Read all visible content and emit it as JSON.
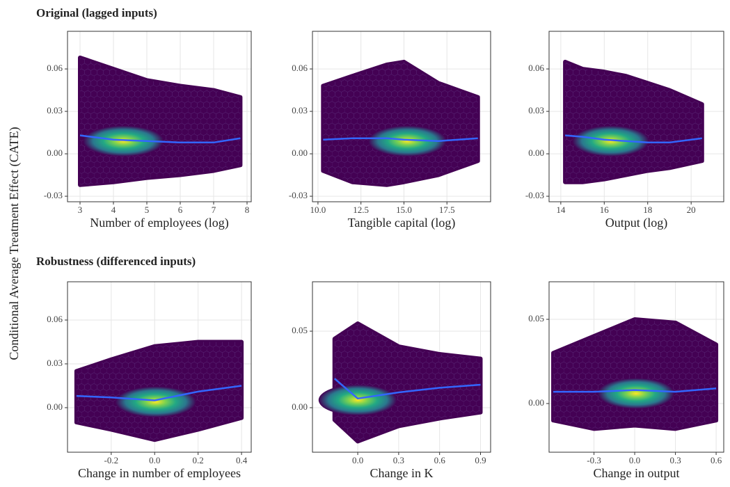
{
  "row_titles": [
    "Original (lagged inputs)",
    "Robustness (differenced inputs)"
  ],
  "y_label": "Conditional Average Treatment Effect (CATE)",
  "chart_data": [
    {
      "type": "hexbin",
      "x_label": "Number of employees (log)",
      "xlim": [
        2.625,
        8.125
      ],
      "ylim": [
        -0.0339,
        0.0866
      ],
      "xticks": [
        3,
        4,
        5,
        6,
        7,
        8
      ],
      "yticks": [
        -0.03,
        {
          "value": 0,
          "label": "0.00"
        },
        0.03,
        0.06
      ],
      "x": [
        3,
        4,
        5,
        6,
        7,
        7.8
      ],
      "envelope_top": [
        0.068,
        0.06,
        0.052,
        0.048,
        0.045,
        0.04
      ],
      "envelope_bottom": [
        -0.022,
        -0.02,
        -0.017,
        -0.015,
        -0.012,
        -0.008
      ],
      "smooth": [
        0.013,
        0.01,
        0.009,
        0.008,
        0.008,
        0.011
      ],
      "peak": {
        "x": 4.3,
        "y": 0.009
      }
    },
    {
      "type": "hexbin",
      "x_label": "Tangible capital (log)",
      "xlim": [
        9.68,
        20.04
      ],
      "ylim": [
        -0.0339,
        0.0866
      ],
      "xticks": [
        {
          "value": 10,
          "label": "10.0"
        },
        12.5,
        {
          "value": 15,
          "label": "15.0"
        },
        17.5
      ],
      "yticks": [
        -0.03,
        {
          "value": 0,
          "label": "0.00"
        },
        0.03,
        0.06
      ],
      "x": [
        10.3,
        12,
        14,
        15,
        17,
        19.3
      ],
      "envelope_top": [
        0.048,
        0.055,
        0.063,
        0.065,
        0.05,
        0.04
      ],
      "envelope_bottom": [
        -0.012,
        -0.02,
        -0.022,
        -0.02,
        -0.015,
        -0.005
      ],
      "smooth": [
        0.01,
        0.011,
        0.011,
        0.01,
        0.009,
        0.011
      ],
      "peak": {
        "x": 15.2,
        "y": 0.009
      }
    },
    {
      "type": "hexbin",
      "x_label": "Output (log)",
      "xlim": [
        13.46,
        21.5
      ],
      "ylim": [
        -0.0339,
        0.0866
      ],
      "xticks": [
        14,
        16,
        18,
        20
      ],
      "yticks": [
        -0.03,
        {
          "value": 0,
          "label": "0.00"
        },
        0.03,
        0.06
      ],
      "x": [
        14.2,
        15,
        16,
        17,
        18,
        19,
        20.5
      ],
      "envelope_top": [
        0.065,
        0.06,
        0.058,
        0.055,
        0.05,
        0.045,
        0.035
      ],
      "envelope_bottom": [
        -0.02,
        -0.02,
        -0.018,
        -0.015,
        -0.012,
        -0.01,
        -0.005
      ],
      "smooth": [
        0.013,
        0.012,
        0.01,
        0.009,
        0.008,
        0.008,
        0.011
      ],
      "peak": {
        "x": 16.3,
        "y": 0.009
      }
    },
    {
      "type": "hexbin",
      "x_label": "Change in number of employees",
      "xlim": [
        -0.4013,
        0.4446
      ],
      "ylim": [
        -0.0305,
        0.0862
      ],
      "xticks": [
        -0.2,
        {
          "value": 0,
          "label": "0.0"
        },
        0.2,
        0.4
      ],
      "yticks": [
        {
          "value": 0,
          "label": "0.00"
        },
        0.03,
        0.06
      ],
      "x": [
        -0.36,
        -0.2,
        0,
        0.2,
        0.4
      ],
      "envelope_top": [
        0.025,
        0.033,
        0.042,
        0.045,
        0.045
      ],
      "envelope_bottom": [
        -0.01,
        -0.015,
        -0.022,
        -0.015,
        -0.007
      ],
      "smooth": [
        0.008,
        0.007,
        0.005,
        0.011,
        0.015
      ],
      "peak": {
        "x": 0.005,
        "y": 0.004
      }
    },
    {
      "type": "hexbin",
      "x_label": "Change in K",
      "xlim": [
        -0.332,
        0.974
      ],
      "ylim": [
        -0.0291,
        0.0823
      ],
      "xticks": [
        {
          "value": 0,
          "label": "0.0"
        },
        0.3,
        0.6,
        0.9
      ],
      "yticks": [
        {
          "value": 0,
          "label": "0.00"
        },
        0.05
      ],
      "x": [
        -0.17,
        0,
        0.3,
        0.6,
        0.9
      ],
      "envelope_top": [
        0.045,
        0.055,
        0.04,
        0.035,
        0.032
      ],
      "envelope_bottom": [
        -0.008,
        -0.022,
        -0.012,
        -0.007,
        -0.003
      ],
      "smooth": [
        0.019,
        0.006,
        0.01,
        0.013,
        0.015
      ],
      "peak": {
        "x": 0,
        "y": 0.005
      }
    },
    {
      "type": "hexbin",
      "x_label": "Change in output",
      "xlim": [
        -0.631,
        0.656
      ],
      "ylim": [
        -0.0289,
        0.0723
      ],
      "xticks": [
        -0.3,
        {
          "value": 0,
          "label": "0.0"
        },
        0.3,
        0.6
      ],
      "yticks": [
        {
          "value": 0,
          "label": "0.00"
        },
        0.05
      ],
      "x": [
        -0.6,
        -0.3,
        0,
        0.3,
        0.6
      ],
      "envelope_top": [
        0.03,
        0.04,
        0.05,
        0.048,
        0.035
      ],
      "envelope_bottom": [
        -0.01,
        -0.015,
        -0.013,
        -0.015,
        -0.01
      ],
      "smooth": [
        0.007,
        0.007,
        0.008,
        0.007,
        0.009
      ],
      "peak": {
        "x": 0.01,
        "y": 0.006
      }
    }
  ]
}
